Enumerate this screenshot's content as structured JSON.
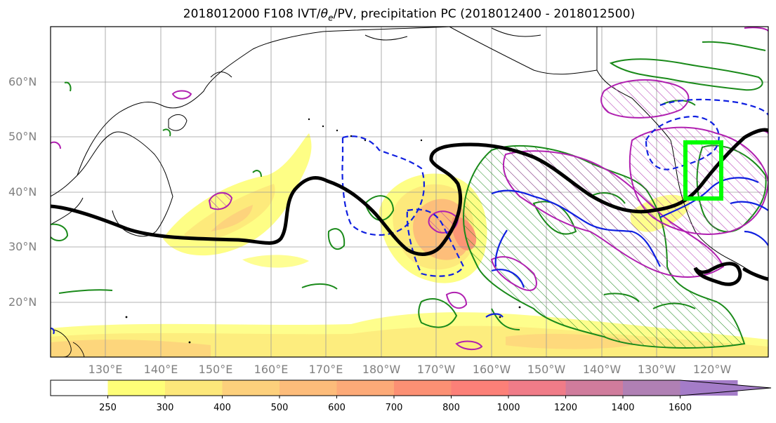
{
  "title": {
    "prefix": "2018012000 F108 IVT/",
    "theta": "θ",
    "sub": "e",
    "suffix": "/PV, precipitation PC (2018012400 - 2018012500)"
  },
  "lat_labels": [
    "60°N",
    "50°N",
    "40°N",
    "30°N",
    "20°N"
  ],
  "lon_labels": [
    "130°E",
    "140°E",
    "150°E",
    "160°E",
    "170°E",
    "180°W",
    "170°W",
    "160°W",
    "150°W",
    "140°W",
    "130°W",
    "120°W"
  ],
  "colorbar": {
    "levels": [
      "250",
      "300",
      "400",
      "500",
      "600",
      "700",
      "800",
      "1000",
      "1200",
      "1400",
      "1600"
    ],
    "colors": [
      "#ffffff",
      "#fefe78",
      "#fde87a",
      "#fdd07c",
      "#fdbc7a",
      "#fdaa78",
      "#fc9074",
      "#fc8078",
      "#f07c88",
      "#d07c9c",
      "#b080b4",
      "#a47cc8"
    ],
    "extend": "max"
  },
  "map": {
    "lat_range": [
      10,
      70
    ],
    "lon_range": [
      120,
      250
    ],
    "grid": true,
    "fields": [
      "IVT shading",
      "theta-e contour (black)",
      "PV contours (blue dashed / solid)",
      "precipitation PC hatched (green, magenta)"
    ],
    "highlight_box_color": "#00ff00"
  }
}
